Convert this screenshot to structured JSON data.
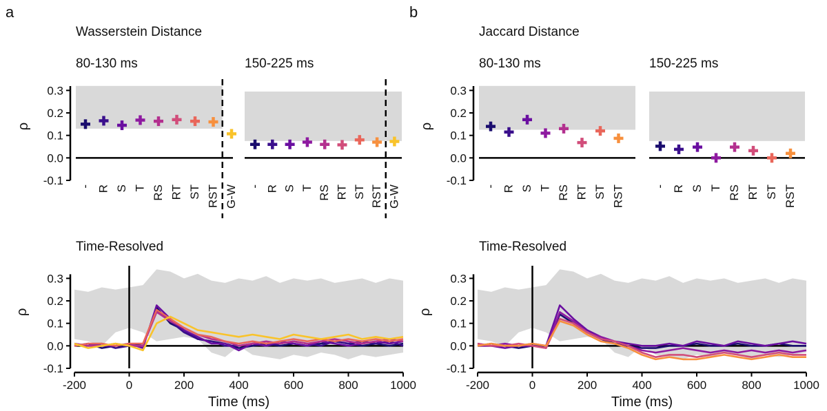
{
  "panels": {
    "a": {
      "letter": "a",
      "title": "Wasserstein Distance",
      "time_resolved_title": "Time-Resolved"
    },
    "b": {
      "letter": "b",
      "title": "Jaccard Distance",
      "time_resolved_title": "Time-Resolved"
    }
  },
  "colors": {
    "-": "#1a0d6e",
    "R": "#3a0f8c",
    "S": "#6a0fa0",
    "T": "#8e1aa0",
    "RS": "#b3308f",
    "RT": "#d14d7a",
    "ST": "#e9665a",
    "RST": "#f7903e",
    "G-W": "#f9c32a",
    "noise": "#d9d9d9"
  },
  "chart_data": [
    {
      "id": "a-80-130",
      "type": "scatter",
      "panel": "a",
      "title": "80-130 ms",
      "ylabel": "ρ",
      "ylim": [
        -0.1,
        0.35
      ],
      "yticks": [
        "0.3",
        "0.2",
        "0.1",
        "0.0",
        "-0.1"
      ],
      "yticks_values": [
        0.3,
        0.2,
        0.1,
        0.0,
        -0.1
      ],
      "categories": [
        "-",
        "R",
        "S",
        "T",
        "RS",
        "RT",
        "ST",
        "RST",
        "G-W"
      ],
      "values": [
        0.15,
        0.165,
        0.145,
        0.168,
        0.163,
        0.17,
        0.163,
        0.16,
        0.107
      ],
      "noise_band": {
        "low": 0.13,
        "high": 0.32,
        "until_category": "RST"
      },
      "divider_before": "G-W"
    },
    {
      "id": "a-150-225",
      "type": "scatter",
      "panel": "a",
      "title": "150-225 ms",
      "ylim": [
        -0.1,
        0.35
      ],
      "categories": [
        "-",
        "R",
        "S",
        "T",
        "RS",
        "RT",
        "ST",
        "RST",
        "G-W"
      ],
      "values": [
        0.06,
        0.06,
        0.06,
        0.07,
        0.06,
        0.058,
        0.08,
        0.07,
        0.073
      ],
      "noise_band": {
        "low": 0.075,
        "high": 0.295,
        "until_category": "G-W"
      },
      "divider_before": "G-W"
    },
    {
      "id": "b-80-130",
      "type": "scatter",
      "panel": "b",
      "title": "80-130 ms",
      "ylabel": "ρ",
      "ylim": [
        -0.1,
        0.35
      ],
      "yticks": [
        "0.3",
        "0.2",
        "0.1",
        "0.0",
        "-0.1"
      ],
      "yticks_values": [
        0.3,
        0.2,
        0.1,
        0.0,
        -0.1
      ],
      "categories": [
        "-",
        "R",
        "S",
        "T",
        "RS",
        "RT",
        "ST",
        "RST"
      ],
      "values": [
        0.14,
        0.115,
        0.17,
        0.11,
        0.13,
        0.068,
        0.12,
        0.087
      ],
      "noise_band": {
        "low": 0.125,
        "high": 0.32
      }
    },
    {
      "id": "b-150-225",
      "type": "scatter",
      "panel": "b",
      "title": "150-225 ms",
      "ylim": [
        -0.1,
        0.35
      ],
      "categories": [
        "-",
        "R",
        "S",
        "T",
        "RS",
        "RT",
        "ST",
        "RST"
      ],
      "values": [
        0.052,
        0.038,
        0.048,
        0.0,
        0.048,
        0.032,
        0.0,
        0.02
      ],
      "noise_band": {
        "low": 0.075,
        "high": 0.295
      }
    },
    {
      "id": "a-time",
      "type": "line",
      "panel": "a",
      "ylabel": "ρ",
      "xlabel": "Time (ms)",
      "xlim": [
        -200,
        1000
      ],
      "ylim": [
        -0.1,
        0.35
      ],
      "xticks": [
        "-200",
        "0",
        "200",
        "400",
        "600",
        "800",
        "1000"
      ],
      "xticks_values": [
        -200,
        0,
        200,
        400,
        600,
        800,
        1000
      ],
      "yticks": [
        "0.3",
        "0.2",
        "0.1",
        "0.0",
        "-0.1"
      ],
      "yticks_values": [
        0.3,
        0.2,
        0.1,
        0.0,
        -0.1
      ],
      "x": [
        -200,
        -150,
        -100,
        -50,
        0,
        50,
        100,
        150,
        200,
        250,
        300,
        350,
        400,
        450,
        500,
        550,
        600,
        650,
        700,
        750,
        800,
        850,
        900,
        950,
        1000
      ],
      "noise_upper": [
        0.25,
        0.24,
        0.26,
        0.25,
        0.26,
        0.27,
        0.34,
        0.33,
        0.3,
        0.32,
        0.29,
        0.28,
        0.3,
        0.29,
        0.31,
        0.28,
        0.3,
        0.29,
        0.3,
        0.28,
        0.29,
        0.3,
        0.28,
        0.3,
        0.29
      ],
      "noise_lower": [
        0.03,
        0.02,
        0.0,
        0.06,
        0.08,
        0.06,
        0.02,
        0.03,
        0.04,
        0.03,
        -0.03,
        -0.05,
        0.0,
        -0.04,
        -0.05,
        -0.06,
        -0.04,
        -0.05,
        -0.03,
        -0.04,
        -0.06,
        -0.04,
        -0.05,
        -0.04,
        -0.03
      ],
      "series": [
        {
          "name": "-",
          "values": [
            0.0,
            0.01,
            -0.01,
            0.0,
            0.01,
            0.0,
            0.17,
            0.1,
            0.07,
            0.03,
            0.02,
            0.01,
            -0.01,
            0.0,
            0.01,
            0.0,
            0.01,
            0.0,
            0.01,
            0.02,
            0.01,
            0.0,
            0.01,
            0.0,
            0.01
          ]
        },
        {
          "name": "R",
          "values": [
            0.01,
            0.0,
            0.01,
            -0.01,
            0.0,
            0.0,
            0.16,
            0.11,
            0.06,
            0.03,
            0.02,
            0.0,
            0.0,
            0.01,
            0.0,
            0.01,
            0.02,
            0.01,
            0.0,
            0.02,
            0.01,
            0.02,
            0.01,
            0.02,
            0.0
          ]
        },
        {
          "name": "S",
          "values": [
            0.0,
            0.01,
            0.0,
            0.0,
            0.01,
            -0.01,
            0.18,
            0.12,
            0.07,
            0.04,
            0.01,
            0.01,
            -0.02,
            0.01,
            0.0,
            0.02,
            0.01,
            0.0,
            0.02,
            0.01,
            0.0,
            0.01,
            0.02,
            0.01,
            0.02
          ]
        },
        {
          "name": "RS",
          "values": [
            0.01,
            0.0,
            0.0,
            0.01,
            0.0,
            0.0,
            0.15,
            0.11,
            0.08,
            0.05,
            0.03,
            0.02,
            0.0,
            0.01,
            0.02,
            0.01,
            0.02,
            0.01,
            0.02,
            0.03,
            0.02,
            0.01,
            0.02,
            0.03,
            0.02
          ]
        },
        {
          "name": "ST",
          "values": [
            0.0,
            0.01,
            0.01,
            0.0,
            0.01,
            0.01,
            0.16,
            0.12,
            0.08,
            0.05,
            0.04,
            0.02,
            0.01,
            0.02,
            0.01,
            0.02,
            0.03,
            0.02,
            0.03,
            0.02,
            0.03,
            0.02,
            0.03,
            0.02,
            0.03
          ]
        },
        {
          "name": "G-W",
          "values": [
            0.01,
            -0.01,
            0.0,
            0.01,
            0.0,
            -0.02,
            0.1,
            0.13,
            0.1,
            0.07,
            0.06,
            0.05,
            0.04,
            0.05,
            0.04,
            0.03,
            0.05,
            0.04,
            0.03,
            0.04,
            0.05,
            0.03,
            0.04,
            0.03,
            0.04
          ]
        }
      ]
    },
    {
      "id": "b-time",
      "type": "line",
      "panel": "b",
      "ylabel": "ρ",
      "xlabel": "Time (ms)",
      "xlim": [
        -200,
        1000
      ],
      "ylim": [
        -0.1,
        0.35
      ],
      "xticks": [
        "-200",
        "0",
        "200",
        "400",
        "600",
        "800",
        "1000"
      ],
      "xticks_values": [
        -200,
        0,
        200,
        400,
        600,
        800,
        1000
      ],
      "yticks": [
        "0.3",
        "0.2",
        "0.1",
        "0.0",
        "-0.1"
      ],
      "yticks_values": [
        0.3,
        0.2,
        0.1,
        0.0,
        -0.1
      ],
      "x": [
        -200,
        -150,
        -100,
        -50,
        0,
        50,
        100,
        150,
        200,
        250,
        300,
        350,
        400,
        450,
        500,
        550,
        600,
        650,
        700,
        750,
        800,
        850,
        900,
        950,
        1000
      ],
      "noise_upper": [
        0.25,
        0.24,
        0.26,
        0.25,
        0.26,
        0.27,
        0.34,
        0.33,
        0.3,
        0.32,
        0.29,
        0.28,
        0.3,
        0.29,
        0.31,
        0.28,
        0.3,
        0.29,
        0.3,
        0.28,
        0.29,
        0.3,
        0.28,
        0.3,
        0.29
      ],
      "noise_lower": [
        0.03,
        0.02,
        0.0,
        0.06,
        0.08,
        0.06,
        0.02,
        0.03,
        0.04,
        0.03,
        -0.03,
        -0.05,
        0.0,
        -0.04,
        -0.05,
        -0.06,
        -0.04,
        -0.05,
        -0.03,
        -0.04,
        -0.06,
        -0.04,
        -0.05,
        -0.04,
        -0.03
      ],
      "series": [
        {
          "name": "-",
          "values": [
            0.0,
            0.01,
            0.0,
            -0.01,
            0.0,
            0.0,
            0.14,
            0.1,
            0.06,
            0.03,
            0.01,
            0.0,
            -0.01,
            -0.01,
            0.0,
            0.0,
            0.01,
            0.0,
            0.0,
            0.01,
            0.0,
            0.0,
            0.01,
            0.0,
            0.0
          ]
        },
        {
          "name": "S",
          "values": [
            0.01,
            0.0,
            -0.01,
            0.0,
            0.01,
            0.0,
            0.18,
            0.12,
            0.07,
            0.04,
            0.02,
            0.01,
            0.0,
            0.0,
            0.01,
            0.0,
            0.02,
            0.01,
            0.0,
            0.02,
            0.01,
            0.0,
            0.01,
            0.02,
            0.01
          ]
        },
        {
          "name": "T",
          "values": [
            0.0,
            0.0,
            0.01,
            0.0,
            0.0,
            -0.01,
            0.15,
            0.11,
            0.06,
            0.04,
            0.02,
            0.0,
            -0.02,
            -0.03,
            -0.02,
            -0.01,
            -0.02,
            -0.03,
            -0.02,
            -0.03,
            -0.02,
            -0.03,
            -0.02,
            -0.03,
            -0.02
          ]
        },
        {
          "name": "RT",
          "values": [
            0.01,
            0.0,
            0.0,
            0.01,
            0.0,
            -0.01,
            0.12,
            0.1,
            0.06,
            0.03,
            0.02,
            0.0,
            -0.03,
            -0.05,
            -0.04,
            -0.04,
            -0.05,
            -0.04,
            -0.03,
            -0.04,
            -0.05,
            -0.04,
            -0.03,
            -0.04,
            -0.04
          ]
        },
        {
          "name": "RST",
          "values": [
            0.0,
            0.01,
            0.0,
            0.0,
            0.01,
            0.0,
            0.11,
            0.09,
            0.05,
            0.02,
            0.01,
            -0.01,
            -0.04,
            -0.06,
            -0.05,
            -0.06,
            -0.06,
            -0.05,
            -0.04,
            -0.05,
            -0.06,
            -0.05,
            -0.04,
            -0.05,
            -0.05
          ]
        }
      ]
    }
  ]
}
